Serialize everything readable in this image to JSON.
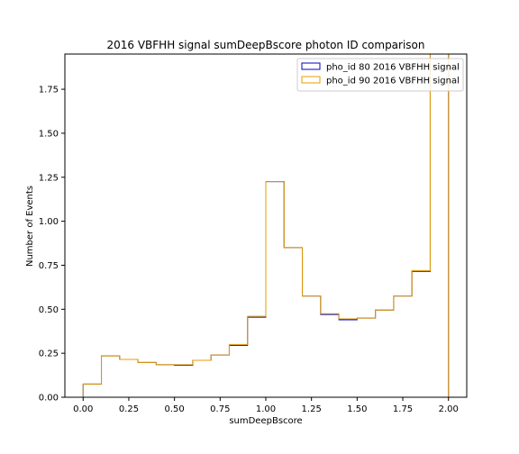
{
  "chart_data": {
    "type": "histogram",
    "title": "2016 VBFHH signal sumDeepBscore photon ID comparison",
    "xlabel": "sumDeepBscore",
    "ylabel": "Number of Events",
    "xlim": [
      -0.1,
      2.1
    ],
    "ylim": [
      0,
      1.95
    ],
    "x_ticks": [
      "0.00",
      "0.25",
      "0.50",
      "0.75",
      "1.00",
      "1.25",
      "1.50",
      "1.75",
      "2.00"
    ],
    "y_ticks": [
      "0.00",
      "0.25",
      "0.50",
      "0.75",
      "1.00",
      "1.25",
      "1.50",
      "1.75"
    ],
    "bin_edges": [
      0.0,
      0.1,
      0.2,
      0.3,
      0.4,
      0.5,
      0.6,
      0.7,
      0.8,
      0.9,
      1.0,
      1.1,
      1.2,
      1.3,
      1.4,
      1.5,
      1.6,
      1.7,
      1.8,
      1.9,
      2.0
    ],
    "grid": false,
    "legend_position": "upper-right",
    "series": [
      {
        "name": "pho_id 80 2016 VBFHH signal",
        "color": "#0000cc",
        "values": [
          0.075,
          0.235,
          0.215,
          0.198,
          0.185,
          0.182,
          0.21,
          0.24,
          0.295,
          0.455,
          1.225,
          0.85,
          0.575,
          0.47,
          0.44,
          0.45,
          0.495,
          0.575,
          0.715,
          1.95
        ]
      },
      {
        "name": "pho_id 90 2016 VBFHH signal",
        "color": "#e69f00",
        "values": [
          0.075,
          0.235,
          0.215,
          0.198,
          0.185,
          0.185,
          0.21,
          0.24,
          0.3,
          0.46,
          1.225,
          0.85,
          0.575,
          0.475,
          0.445,
          0.45,
          0.495,
          0.575,
          0.72,
          1.95
        ]
      }
    ]
  }
}
